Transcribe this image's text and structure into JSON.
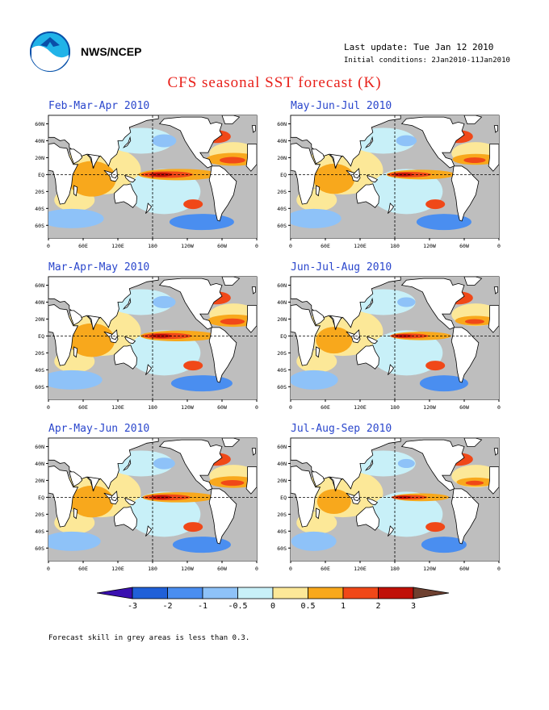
{
  "header": {
    "agency": "NWS/NCEP",
    "last_update": "Last update: Tue Jan 12 2010",
    "initial_conditions": "Initial conditions: 2Jan2010-11Jan2010"
  },
  "title": "CFS seasonal SST forecast (K)",
  "panels": [
    {
      "title": "Feb-Mar-Apr 2010",
      "strength": 1.0
    },
    {
      "title": "May-Jun-Jul 2010",
      "strength": 0.85
    },
    {
      "title": "Mar-Apr-May 2010",
      "strength": 0.95
    },
    {
      "title": "Jun-Jul-Aug 2010",
      "strength": 0.75
    },
    {
      "title": "Apr-May-Jun 2010",
      "strength": 0.9
    },
    {
      "title": "Jul-Aug-Sep 2010",
      "strength": 0.7
    }
  ],
  "axes": {
    "lat_labels": [
      "60N",
      "40N",
      "20N",
      "EQ",
      "20S",
      "40S",
      "60S"
    ],
    "lon_labels": [
      "0",
      "60E",
      "120E",
      "180",
      "120W",
      "60W",
      "0"
    ]
  },
  "colorbar": {
    "labels": [
      "-3",
      "-2",
      "-1",
      "-0.5",
      "0",
      "0.5",
      "1",
      "2",
      "3"
    ],
    "colors": [
      "#3a10b0",
      "#2060d8",
      "#4a8ef0",
      "#8ec2f8",
      "#c8f0f8",
      "#fce898",
      "#f8a81c",
      "#f04818",
      "#c01008",
      "#6e4030"
    ]
  },
  "footnote": "Forecast skill in grey areas is less than 0.3.",
  "map_colors": {
    "skill_grey": "#bebebe",
    "land": "#ffffff",
    "coast": "#000000"
  }
}
